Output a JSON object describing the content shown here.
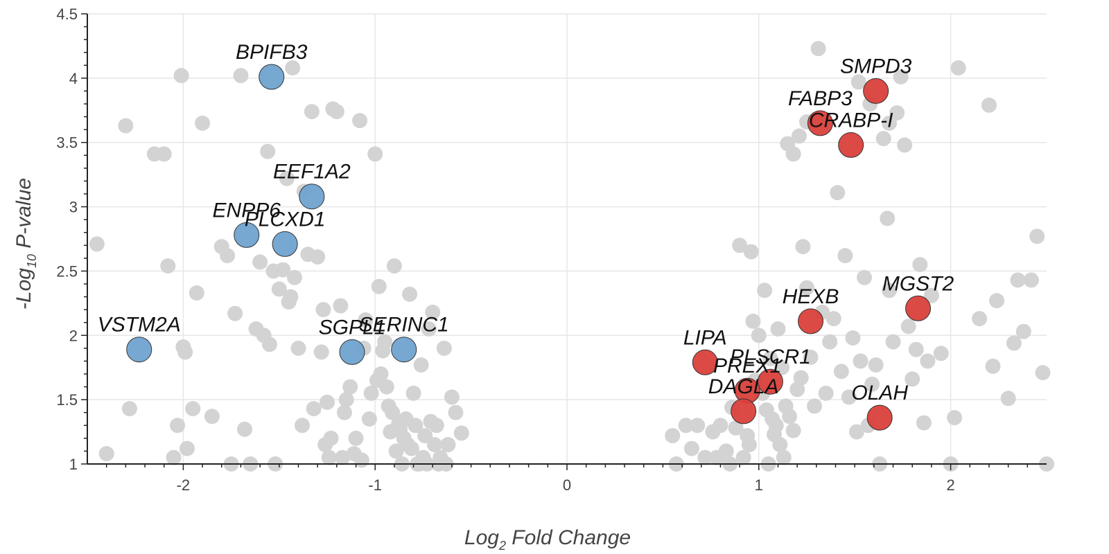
{
  "chart_data": {
    "type": "scatter",
    "xlabel": {
      "prefix": "Log",
      "sub": "2",
      "suffix": " Fold Change"
    },
    "ylabel": {
      "prefix": "-Log",
      "sub": "10",
      "suffix": " P-value"
    },
    "xlim": [
      -2.5,
      2.5
    ],
    "ylim": [
      1,
      4.5
    ],
    "xticks": [
      -2,
      -1,
      0,
      1,
      2
    ],
    "yticks": [
      1,
      1.5,
      2,
      2.5,
      3,
      3.5,
      4,
      4.5
    ],
    "grid": true,
    "colors": {
      "background_points": "#d3d3d3",
      "down": "#6fa3d0",
      "up": "#d9403b",
      "grid": "#e6e6e6",
      "axis": "#222222"
    },
    "background": [
      [
        -2.45,
        2.71
      ],
      [
        -2.4,
        1.08
      ],
      [
        -2.3,
        3.63
      ],
      [
        -2.28,
        1.43
      ],
      [
        -2.15,
        3.41
      ],
      [
        -2.1,
        3.41
      ],
      [
        -2.08,
        2.54
      ],
      [
        -2.05,
        1.05
      ],
      [
        -2.03,
        1.3
      ],
      [
        -2.01,
        4.02
      ],
      [
        -2.0,
        1.91
      ],
      [
        -1.99,
        1.87
      ],
      [
        -1.98,
        1.12
      ],
      [
        -1.95,
        1.43
      ],
      [
        -1.93,
        2.33
      ],
      [
        -1.9,
        3.65
      ],
      [
        -1.85,
        1.37
      ],
      [
        -1.8,
        2.69
      ],
      [
        -1.77,
        2.62
      ],
      [
        -1.75,
        1.0
      ],
      [
        -1.73,
        2.17
      ],
      [
        -1.7,
        4.02
      ],
      [
        -1.68,
        1.27
      ],
      [
        -1.65,
        1.0
      ],
      [
        -1.62,
        2.05
      ],
      [
        -1.6,
        2.57
      ],
      [
        -1.58,
        2.0
      ],
      [
        -1.56,
        3.43
      ],
      [
        -1.55,
        1.93
      ],
      [
        -1.53,
        2.5
      ],
      [
        -1.52,
        1.0
      ],
      [
        -1.5,
        2.36
      ],
      [
        -1.48,
        2.51
      ],
      [
        -1.46,
        3.22
      ],
      [
        -1.45,
        2.26
      ],
      [
        -1.44,
        2.3
      ],
      [
        -1.43,
        4.08
      ],
      [
        -1.42,
        2.45
      ],
      [
        -1.4,
        1.9
      ],
      [
        -1.38,
        1.3
      ],
      [
        -1.37,
        3.12
      ],
      [
        -1.35,
        2.63
      ],
      [
        -1.33,
        3.74
      ],
      [
        -1.3,
        2.61
      ],
      [
        -1.28,
        1.87
      ],
      [
        -1.27,
        2.2
      ],
      [
        -1.25,
        1.48
      ],
      [
        -1.22,
        3.76
      ],
      [
        -1.2,
        3.74
      ],
      [
        -1.18,
        2.23
      ],
      [
        -1.16,
        1.4
      ],
      [
        -1.13,
        1.6
      ],
      [
        -1.1,
        1.2
      ],
      [
        -1.08,
        3.67
      ],
      [
        -1.06,
        1.9
      ],
      [
        -1.05,
        2.12
      ],
      [
        -1.03,
        1.35
      ],
      [
        -1.0,
        3.41
      ],
      [
        -0.98,
        2.38
      ],
      [
        -0.96,
        1.88
      ],
      [
        -0.94,
        1.6
      ],
      [
        -0.92,
        1.25
      ],
      [
        -0.9,
        2.54
      ],
      [
        -0.88,
        1.3
      ],
      [
        -0.86,
        1.0
      ],
      [
        -0.84,
        1.35
      ],
      [
        -0.82,
        2.32
      ],
      [
        -0.8,
        1.55
      ],
      [
        -0.78,
        1.0
      ],
      [
        -0.76,
        1.77
      ],
      [
        -0.74,
        1.22
      ],
      [
        -0.72,
        2.05
      ],
      [
        -0.7,
        2.18
      ],
      [
        -0.68,
        1.3
      ],
      [
        -0.66,
        1.05
      ],
      [
        -0.64,
        1.9
      ],
      [
        -0.62,
        1.15
      ],
      [
        -0.6,
        1.52
      ],
      [
        -0.58,
        1.4
      ],
      [
        -0.55,
        1.24
      ],
      [
        -1.15,
        1.5
      ],
      [
        -1.02,
        1.55
      ],
      [
        -0.97,
        1.7
      ],
      [
        -0.93,
        1.45
      ],
      [
        -0.89,
        1.1
      ],
      [
        -0.85,
        1.2
      ],
      [
        -0.81,
        1.12
      ],
      [
        -0.79,
        1.3
      ],
      [
        -0.75,
        1.05
      ],
      [
        -0.71,
        1.33
      ],
      [
        -0.69,
        1.15
      ],
      [
        -1.24,
        1.05
      ],
      [
        -1.26,
        1.15
      ],
      [
        -1.32,
        1.43
      ],
      [
        -1.11,
        1.08
      ],
      [
        -1.07,
        1.03
      ],
      [
        -0.99,
        1.65
      ],
      [
        -0.95,
        1.95
      ],
      [
        -0.91,
        1.4
      ],
      [
        -0.87,
        1.27
      ],
      [
        -0.83,
        1.15
      ],
      [
        -0.77,
        1.0
      ],
      [
        -0.73,
        1.0
      ],
      [
        -0.67,
        1.0
      ],
      [
        -0.63,
        1.0
      ],
      [
        -1.23,
        1.2
      ],
      [
        -1.17,
        1.05
      ],
      [
        0.55,
        1.22
      ],
      [
        0.57,
        1.0
      ],
      [
        0.62,
        1.3
      ],
      [
        0.65,
        1.12
      ],
      [
        0.68,
        1.3
      ],
      [
        0.72,
        1.05
      ],
      [
        0.76,
        1.25
      ],
      [
        0.8,
        1.3
      ],
      [
        0.83,
        1.1
      ],
      [
        0.86,
        1.44
      ],
      [
        0.88,
        1.28
      ],
      [
        0.9,
        2.7
      ],
      [
        0.92,
        1.05
      ],
      [
        0.94,
        1.22
      ],
      [
        0.96,
        2.65
      ],
      [
        0.97,
        2.11
      ],
      [
        0.98,
        1.65
      ],
      [
        1.0,
        2.0
      ],
      [
        1.02,
        1.55
      ],
      [
        1.04,
        1.42
      ],
      [
        1.06,
        1.82
      ],
      [
        1.08,
        1.23
      ],
      [
        1.1,
        2.05
      ],
      [
        1.12,
        1.75
      ],
      [
        1.14,
        1.45
      ],
      [
        1.16,
        1.37
      ],
      [
        1.18,
        1.26
      ],
      [
        1.2,
        1.58
      ],
      [
        1.22,
        1.67
      ],
      [
        1.23,
        2.69
      ],
      [
        1.25,
        2.37
      ],
      [
        1.27,
        1.83
      ],
      [
        1.29,
        1.45
      ],
      [
        1.31,
        4.23
      ],
      [
        1.33,
        2.18
      ],
      [
        1.35,
        1.55
      ],
      [
        1.37,
        1.95
      ],
      [
        1.39,
        2.13
      ],
      [
        1.41,
        3.11
      ],
      [
        1.43,
        1.72
      ],
      [
        1.45,
        2.62
      ],
      [
        1.47,
        1.52
      ],
      [
        1.49,
        1.98
      ],
      [
        1.51,
        1.25
      ],
      [
        1.53,
        1.8
      ],
      [
        1.55,
        2.45
      ],
      [
        1.57,
        1.3
      ],
      [
        1.59,
        1.62
      ],
      [
        1.61,
        1.77
      ],
      [
        1.63,
        1.0
      ],
      [
        1.65,
        3.53
      ],
      [
        1.67,
        2.91
      ],
      [
        1.68,
        2.35
      ],
      [
        1.7,
        1.95
      ],
      [
        1.72,
        3.73
      ],
      [
        1.74,
        4.01
      ],
      [
        1.76,
        3.48
      ],
      [
        1.78,
        2.07
      ],
      [
        1.8,
        1.66
      ],
      [
        1.82,
        1.89
      ],
      [
        1.84,
        2.55
      ],
      [
        1.86,
        1.32
      ],
      [
        1.88,
        1.8
      ],
      [
        1.9,
        2.31
      ],
      [
        1.95,
        1.86
      ],
      [
        2.0,
        1.0
      ],
      [
        2.02,
        1.36
      ],
      [
        2.04,
        4.08
      ],
      [
        2.15,
        2.13
      ],
      [
        2.2,
        3.79
      ],
      [
        2.22,
        1.76
      ],
      [
        2.24,
        2.27
      ],
      [
        2.3,
        1.51
      ],
      [
        2.33,
        1.94
      ],
      [
        2.35,
        2.43
      ],
      [
        2.38,
        2.03
      ],
      [
        2.42,
        2.43
      ],
      [
        2.45,
        2.77
      ],
      [
        2.48,
        1.71
      ],
      [
        2.5,
        1.0
      ],
      [
        1.15,
        3.49
      ],
      [
        1.18,
        3.41
      ],
      [
        1.25,
        3.66
      ],
      [
        1.21,
        3.55
      ],
      [
        1.52,
        3.97
      ],
      [
        1.68,
        3.65
      ],
      [
        1.58,
        3.8
      ],
      [
        0.95,
        1.15
      ],
      [
        1.05,
        1.0
      ],
      [
        1.13,
        1.05
      ],
      [
        0.85,
        1.0
      ],
      [
        0.78,
        1.05
      ],
      [
        1.09,
        1.3
      ],
      [
        1.03,
        2.35
      ],
      [
        1.07,
        1.35
      ],
      [
        1.11,
        1.15
      ]
    ],
    "highlighted": [
      {
        "gene": "BPIFB3",
        "x": -1.54,
        "y": 4.01,
        "group": "down"
      },
      {
        "gene": "EEF1A2",
        "x": -1.33,
        "y": 3.08,
        "group": "down"
      },
      {
        "gene": "ENPP6",
        "x": -1.67,
        "y": 2.78,
        "group": "down"
      },
      {
        "gene": "PLCXD1",
        "x": -1.47,
        "y": 2.71,
        "group": "down"
      },
      {
        "gene": "VSTM2A",
        "x": -2.23,
        "y": 1.89,
        "group": "down"
      },
      {
        "gene": "SGPL1",
        "x": -1.12,
        "y": 1.87,
        "group": "down"
      },
      {
        "gene": "SERINC1",
        "x": -0.85,
        "y": 1.89,
        "group": "down"
      },
      {
        "gene": "SMPD3",
        "x": 1.61,
        "y": 3.9,
        "group": "up"
      },
      {
        "gene": "FABP3",
        "x": 1.32,
        "y": 3.65,
        "group": "up"
      },
      {
        "gene": "CRABP-I",
        "x": 1.48,
        "y": 3.48,
        "group": "up"
      },
      {
        "gene": "MGST2",
        "x": 1.83,
        "y": 2.21,
        "group": "up"
      },
      {
        "gene": "HEXB",
        "x": 1.27,
        "y": 2.11,
        "group": "up"
      },
      {
        "gene": "LIPA",
        "x": 0.72,
        "y": 1.79,
        "group": "up"
      },
      {
        "gene": "PLSCR1",
        "x": 1.06,
        "y": 1.64,
        "group": "up"
      },
      {
        "gene": "PREX1",
        "x": 0.94,
        "y": 1.57,
        "group": "up"
      },
      {
        "gene": "DAGLA",
        "x": 0.92,
        "y": 1.41,
        "group": "up"
      },
      {
        "gene": "OLAH",
        "x": 1.63,
        "y": 1.36,
        "group": "up"
      }
    ]
  }
}
